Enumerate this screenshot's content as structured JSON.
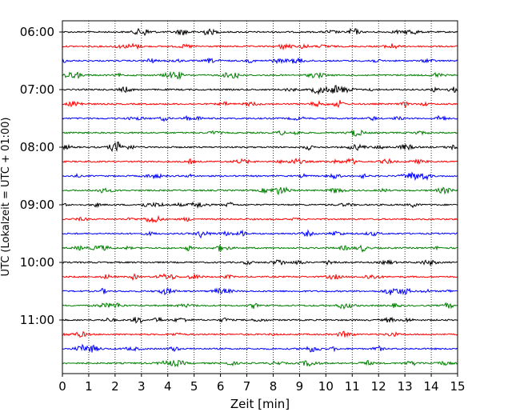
{
  "chart_data": {
    "type": "line",
    "xlabel": "Zeit  [min]",
    "ylabel": "UTC (Lokalzeit = UTC + 01:00)",
    "xlim": [
      0,
      15
    ],
    "x_ticks": [
      "0",
      "1",
      "2",
      "3",
      "4",
      "5",
      "6",
      "7",
      "8",
      "9",
      "10",
      "11",
      "12",
      "13",
      "14",
      "15"
    ],
    "y_ticks": [
      "06:00",
      "07:00",
      "08:00",
      "09:00",
      "10:00",
      "11:00"
    ],
    "grid": "vertical-dotted",
    "trace_interval_minutes": 15,
    "traces_start": "06:00",
    "traces_end": "11:45",
    "series": [
      {
        "start": "06:00",
        "color": "#000000"
      },
      {
        "start": "06:15",
        "color": "#ff0000"
      },
      {
        "start": "06:30",
        "color": "#0000ff"
      },
      {
        "start": "06:45",
        "color": "#008000"
      },
      {
        "start": "07:00",
        "color": "#000000"
      },
      {
        "start": "07:15",
        "color": "#ff0000"
      },
      {
        "start": "07:30",
        "color": "#0000ff"
      },
      {
        "start": "07:45",
        "color": "#008000"
      },
      {
        "start": "08:00",
        "color": "#000000"
      },
      {
        "start": "08:15",
        "color": "#ff0000"
      },
      {
        "start": "08:30",
        "color": "#0000ff"
      },
      {
        "start": "08:45",
        "color": "#008000"
      },
      {
        "start": "09:00",
        "color": "#000000"
      },
      {
        "start": "09:15",
        "color": "#ff0000"
      },
      {
        "start": "09:30",
        "color": "#0000ff"
      },
      {
        "start": "09:45",
        "color": "#008000"
      },
      {
        "start": "10:00",
        "color": "#000000"
      },
      {
        "start": "10:15",
        "color": "#ff0000"
      },
      {
        "start": "10:30",
        "color": "#0000ff"
      },
      {
        "start": "10:45",
        "color": "#008000"
      },
      {
        "start": "11:00",
        "color": "#000000"
      },
      {
        "start": "11:15",
        "color": "#ff0000"
      },
      {
        "start": "11:30",
        "color": "#0000ff"
      },
      {
        "start": "11:45",
        "color": "#008000"
      }
    ]
  }
}
